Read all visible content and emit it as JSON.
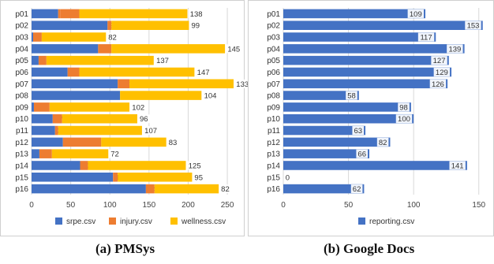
{
  "chart_data": [
    {
      "type": "bar",
      "orientation": "horizontal",
      "stacked": true,
      "categories": [
        "p01",
        "p02",
        "p03",
        "p04",
        "p05",
        "p06",
        "p07",
        "p08",
        "p09",
        "p10",
        "p11",
        "p12",
        "p13",
        "p14",
        "p15",
        "p16"
      ],
      "series": [
        {
          "name": "srpe.csv",
          "color": "#4472c4",
          "values": [
            34,
            97,
            2,
            85,
            9,
            46,
            110,
            113,
            3,
            27,
            30,
            40,
            10,
            62,
            104,
            146
          ]
        },
        {
          "name": "injury.csv",
          "color": "#ed7d31",
          "values": [
            3,
            0,
            0,
            0,
            0,
            0,
            0,
            0,
            0,
            0,
            0,
            0,
            0,
            0,
            0,
            0
          ]
        },
        {
          "name": "injury.csv",
          "color": "#ed7d31",
          "values": [
            24,
            5,
            11,
            17,
            10,
            15,
            15,
            0,
            20,
            12,
            4,
            49,
            16,
            10,
            6,
            11
          ]
        },
        {
          "name": "wellness.csv",
          "color": "#ffc000",
          "values": [
            138,
            99,
            82,
            145,
            137,
            147,
            133,
            104,
            102,
            96,
            107,
            83,
            72,
            125,
            95,
            82
          ]
        }
      ],
      "xlim": [
        0,
        260
      ],
      "xticks": [
        "0",
        "50",
        "100",
        "150",
        "200",
        "250"
      ],
      "legend": [
        "srpe.csv",
        "injury.csv",
        "wellness.csv"
      ],
      "legend_position": "bottom",
      "grid": "vertical",
      "caption": "(a) PMSys"
    },
    {
      "type": "bar",
      "orientation": "horizontal",
      "categories": [
        "p01",
        "p02",
        "p03",
        "p04",
        "p05",
        "p06",
        "p07",
        "p08",
        "p09",
        "p10",
        "p11",
        "p12",
        "p13",
        "p14",
        "p15",
        "p16"
      ],
      "series": [
        {
          "name": "reporting.csv",
          "color": "#4472c4",
          "values": [
            109,
            153,
            117,
            139,
            127,
            129,
            126,
            58,
            98,
            100,
            63,
            82,
            66,
            141,
            0,
            62
          ]
        }
      ],
      "xlim": [
        0,
        155
      ],
      "xticks": [
        "0",
        "50",
        "100",
        "150"
      ],
      "legend": [
        "reporting.csv"
      ],
      "legend_position": "bottom",
      "grid": "vertical",
      "caption": "(b) Google Docs"
    }
  ]
}
